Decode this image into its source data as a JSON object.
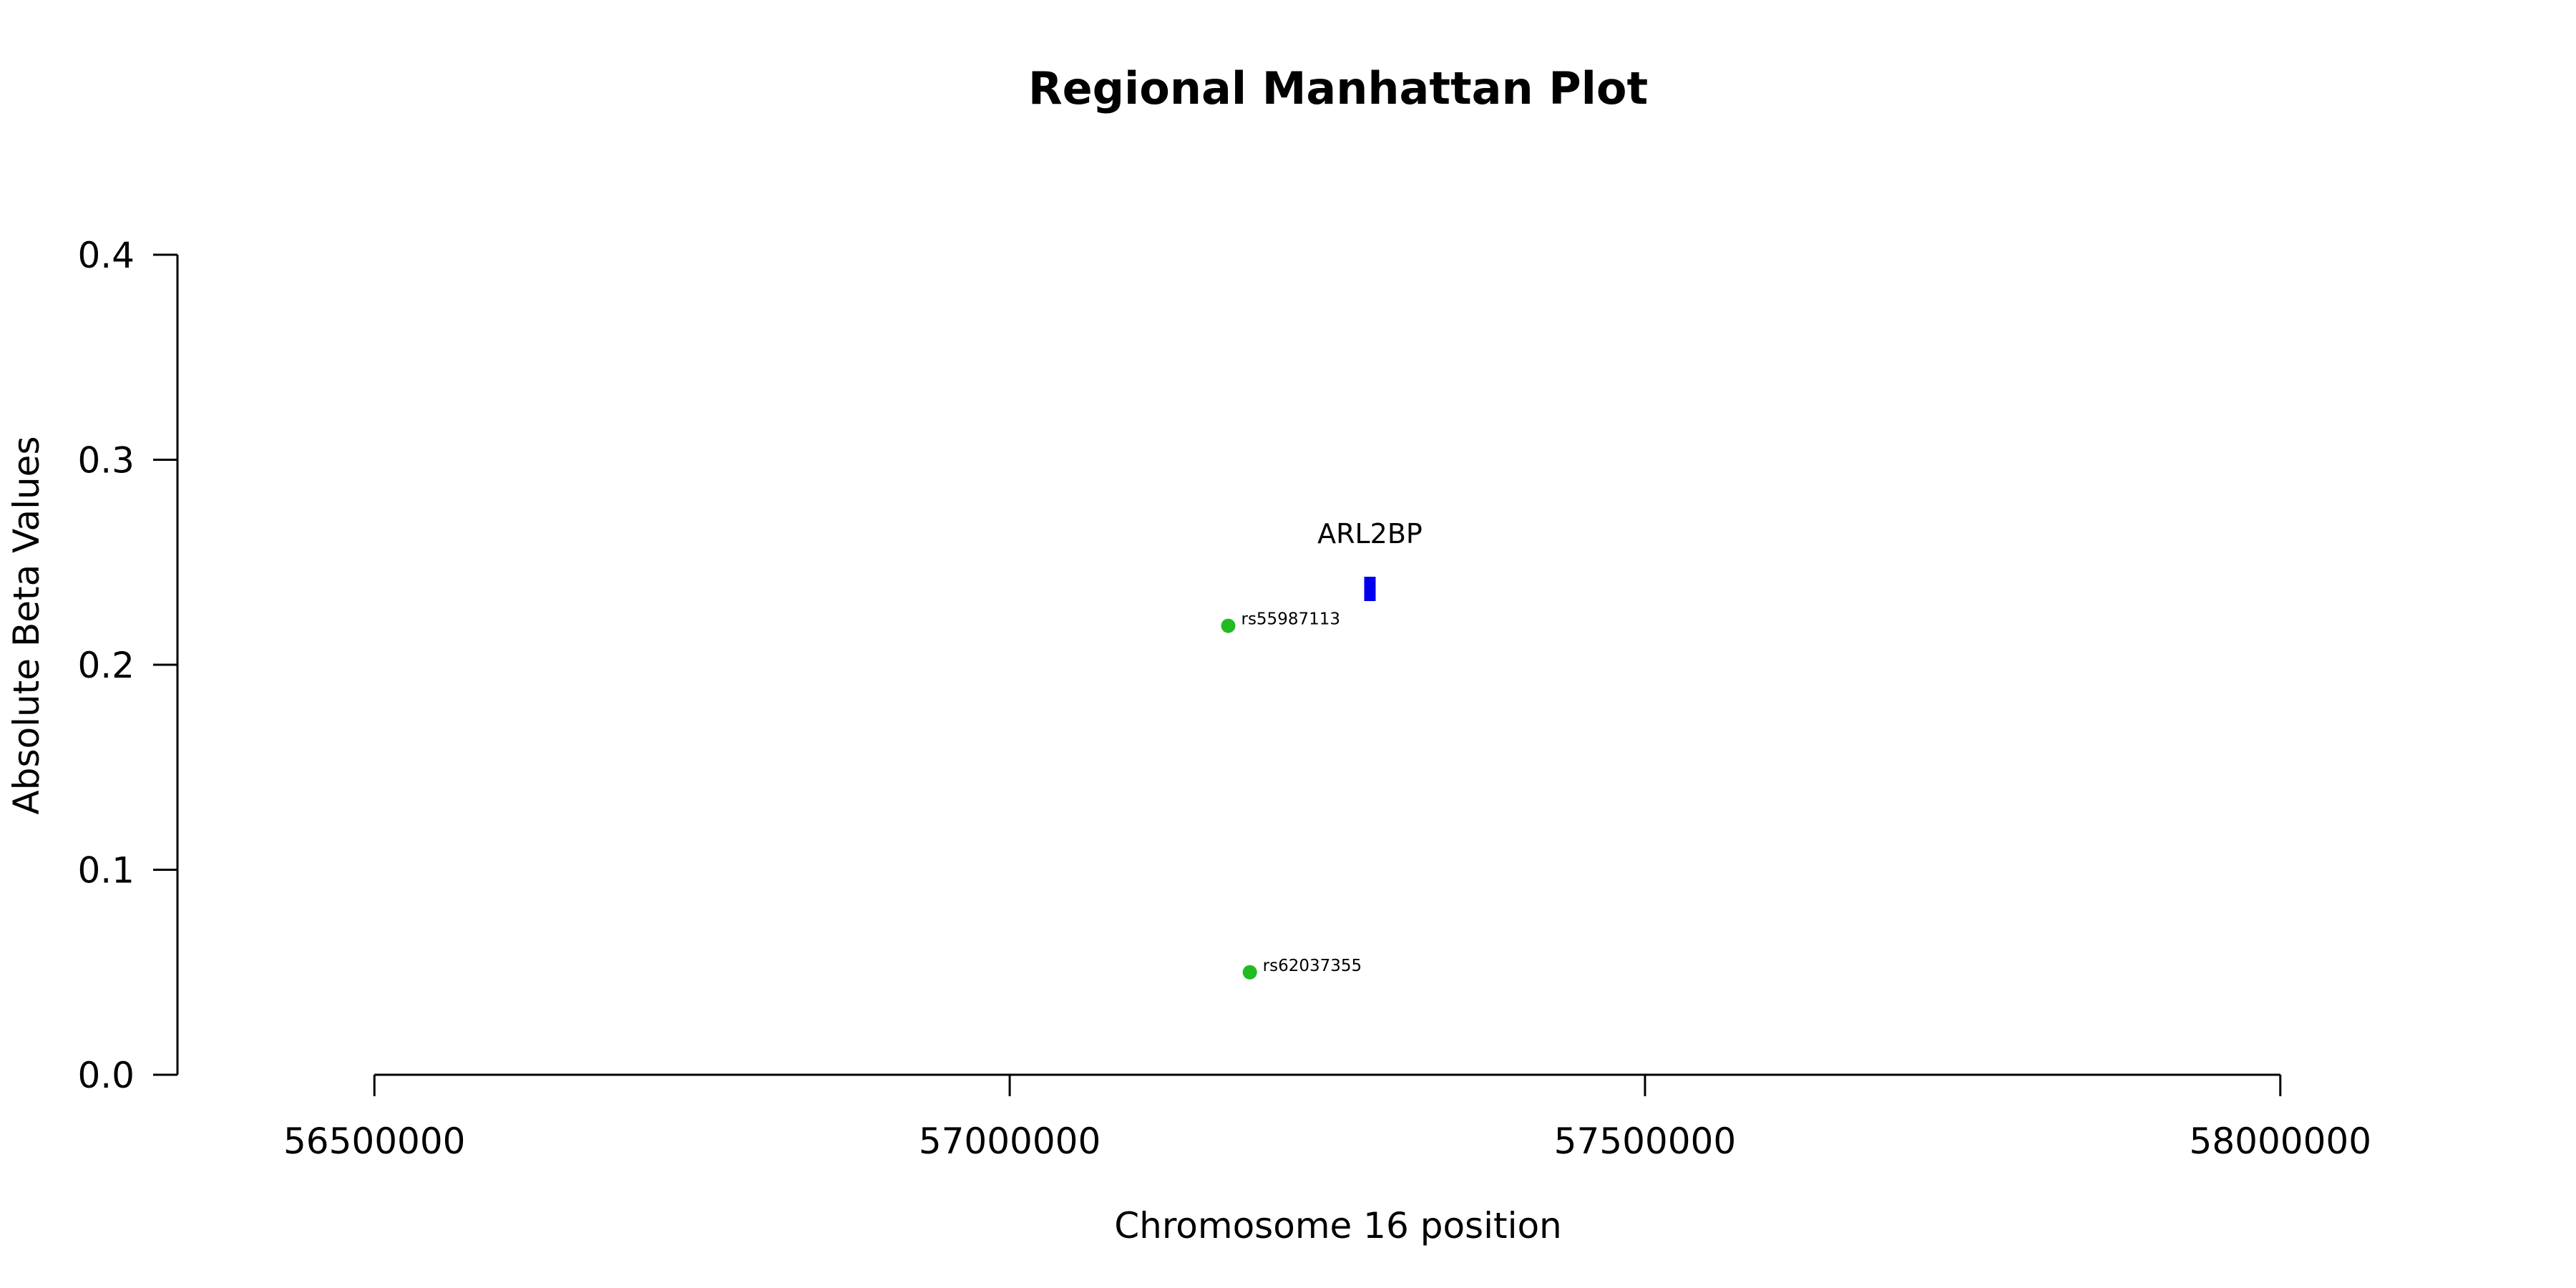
{
  "chart_data": {
    "type": "scatter",
    "title": "Regional Manhattan Plot",
    "xlabel": "Chromosome 16 position",
    "ylabel": "Absolute Beta Values",
    "xlim": [
      56345000,
      58155000
    ],
    "ylim": [
      0,
      0.4
    ],
    "x_ticks": [
      {
        "value": 56500000,
        "label": "56500000"
      },
      {
        "value": 57000000,
        "label": "57000000"
      },
      {
        "value": 57500000,
        "label": "57500000"
      },
      {
        "value": 58000000,
        "label": "58000000"
      }
    ],
    "y_ticks": [
      {
        "value": 0.0,
        "label": "0.0"
      },
      {
        "value": 0.1,
        "label": "0.1"
      },
      {
        "value": 0.2,
        "label": "0.2"
      },
      {
        "value": 0.3,
        "label": "0.3"
      },
      {
        "value": 0.4,
        "label": "0.4"
      }
    ],
    "points": [
      {
        "x": 57172000,
        "y": 0.219,
        "label": "rs55987113",
        "color": "#22bb22"
      },
      {
        "x": 57189000,
        "y": 0.05,
        "label": "rs62037355",
        "color": "#22bb22"
      }
    ],
    "genes": [
      {
        "name": "ARL2BP",
        "start": 57279000,
        "end": 57288000,
        "y": 0.237,
        "color": "#0000ee"
      }
    ],
    "grid": false,
    "legend": "none"
  }
}
